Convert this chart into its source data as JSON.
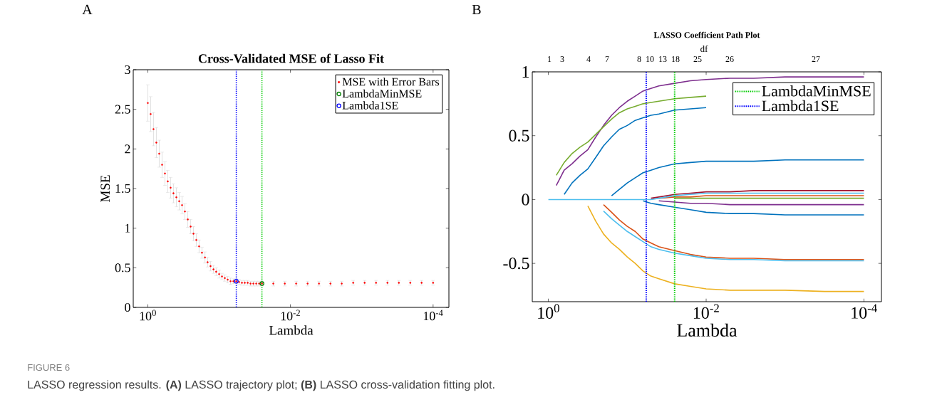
{
  "chart_data": [
    {
      "type": "scatter",
      "title": "Cross-Validated MSE of Lasso Fit",
      "xlabel": "Lambda",
      "ylabel": "MSE",
      "log": "x",
      "xlim": [
        1.6,
        6e-05
      ],
      "ylim": [
        0,
        3
      ],
      "xticks": [
        {
          "value": 1,
          "label": "10$^{0}$"
        },
        {
          "value": 0.01,
          "label": "10$^{-2}$"
        },
        {
          "value": 0.0001,
          "label": "10$^{-4}$"
        }
      ],
      "yticks": [
        0,
        0.5,
        1,
        1.5,
        2,
        2.5,
        3
      ],
      "legend": "top right",
      "marker": "circle",
      "annotations": [
        "A",
        "FIGURE 6",
        "LASSO regression results. **(A)** LASSO trajectory plot; **(B)** LASSO cross-validation fitting plot."
      ],
      "ref_lines": [
        {
          "axis": "x",
          "value": 0.0575,
          "color": "#0000ff",
          "line_style": "dotted"
        },
        {
          "axis": "x",
          "value": 0.0251,
          "color": "#00cc00",
          "line_style": "dotted"
        }
      ],
      "series": [
        {
          "name": "MSE with Error Bars",
          "color": "#ff0000",
          "x": [
            1,
            0.912,
            0.832,
            0.759,
            0.692,
            0.631,
            0.575,
            0.525,
            0.479,
            0.437,
            0.398,
            0.363,
            0.331,
            0.302,
            0.275,
            0.251,
            0.229,
            0.209,
            0.191,
            0.174,
            0.158,
            0.145,
            0.132,
            0.12,
            0.11,
            0.1,
            0.0912,
            0.0832,
            0.0759,
            0.0692,
            0.0631,
            0.0575,
            0.0525,
            0.0479,
            0.0437,
            0.0398,
            0.0363,
            0.0331,
            0.0302,
            0.0275,
            0.0251,
            0.0174,
            0.012,
            0.00832,
            0.00575,
            0.00398,
            0.00275,
            0.00191,
            0.00132,
            0.000912,
            0.000631,
            0.000437,
            0.000302,
            0.000209,
            0.000145,
            0.0001
          ],
          "values": [
            2.58,
            2.44,
            2.25,
            2.08,
            1.94,
            1.8,
            1.69,
            1.59,
            1.51,
            1.44,
            1.39,
            1.34,
            1.29,
            1.21,
            1.11,
            1.02,
            0.93,
            0.85,
            0.77,
            0.69,
            0.63,
            0.57,
            0.52,
            0.48,
            0.45,
            0.42,
            0.39,
            0.37,
            0.35,
            0.33,
            0.33,
            0.33,
            0.32,
            0.31,
            0.31,
            0.31,
            0.3,
            0.3,
            0.3,
            0.3,
            0.3,
            0.3,
            0.3,
            0.3,
            0.3,
            0.3,
            0.3,
            0.3,
            0.31,
            0.31,
            0.31,
            0.31,
            0.31,
            0.31,
            0.31,
            0.31
          ],
          "errors": [
            0.23,
            0.22,
            0.21,
            0.19,
            0.17,
            0.16,
            0.15,
            0.14,
            0.13,
            0.12,
            0.12,
            0.11,
            0.11,
            0.1,
            0.1,
            0.09,
            0.09,
            0.08,
            0.08,
            0.07,
            0.07,
            0.06,
            0.06,
            0.05,
            0.05,
            0.05,
            0.04,
            0.04,
            0.04,
            0.04,
            0.03,
            0.03,
            0.03,
            0.03,
            0.03,
            0.03,
            0.03,
            0.03,
            0.03,
            0.03,
            0.03,
            0.03,
            0.03,
            0.03,
            0.03,
            0.03,
            0.03,
            0.03,
            0.03,
            0.03,
            0.03,
            0.03,
            0.03,
            0.03,
            0.03,
            0.03
          ]
        },
        {
          "name": "LambdaMinMSE",
          "color": "#008000",
          "x": [
            0.0251
          ],
          "values": [
            0.3
          ]
        },
        {
          "name": "Lambda1SE",
          "color": "#0000ff",
          "x": [
            0.0575
          ],
          "values": [
            0.33
          ]
        }
      ]
    },
    {
      "type": "line",
      "title": "LASSO Coefficient Path Plot",
      "xlabel": "Lambda",
      "log": "x",
      "xlim": [
        1.6,
        6e-05
      ],
      "ylim": [
        -0.8,
        1
      ],
      "xticks": [
        {
          "value": 1,
          "label": "10$^{0}$"
        },
        {
          "value": 0.01,
          "label": "10$^{-2}$"
        },
        {
          "value": 0.0001,
          "label": "10$^{-4}$"
        }
      ],
      "yticks": [
        -0.5,
        0,
        0.5,
        1
      ],
      "legend": "top right",
      "annotations": [
        "B",
        "df",
        "1",
        "3",
        "4",
        "7",
        "8",
        "10",
        "13",
        "18",
        "25",
        "26",
        "27"
      ],
      "x": [
        1,
        0.794,
        0.631,
        0.501,
        0.398,
        0.316,
        0.251,
        0.2,
        0.158,
        0.126,
        0.1,
        0.0794,
        0.0631,
        0.0501,
        0.0398,
        0.0251,
        0.0158,
        0.01,
        0.005,
        0.0025,
        0.001,
        0.000316,
        0.0001
      ],
      "series": [
        {
          "color": "#d95319",
          "values": [
            null,
            null,
            null,
            null,
            null,
            null,
            null,
            null,
            null,
            null,
            null,
            null,
            null,
            null,
            0.01,
            0.02,
            0.02,
            0.03,
            0.03,
            0.03,
            0.03,
            0.03,
            0.03
          ]
        },
        {
          "color": "#77ac30",
          "values": [
            null,
            null,
            null,
            null,
            null,
            null,
            null,
            null,
            null,
            null,
            null,
            null,
            null,
            null,
            null,
            0.01,
            0.01,
            0.01,
            0.01,
            0.01,
            0.01,
            0.01,
            0.01
          ]
        },
        {
          "color": "#7e2f8e",
          "values": [
            null,
            null,
            null,
            null,
            null,
            null,
            null,
            null,
            null,
            null,
            null,
            null,
            null,
            null,
            -0.01,
            -0.02,
            -0.03,
            -0.03,
            -0.04,
            -0.04,
            -0.04,
            -0.04,
            -0.04
          ]
        },
        {
          "color": "#7e2f8e",
          "values": [
            null,
            0.11,
            0.23,
            0.28,
            0.34,
            0.39,
            0.49,
            0.58,
            0.66,
            0.72,
            0.77,
            0.81,
            0.85,
            0.87,
            0.89,
            0.91,
            0.93,
            0.94,
            0.95,
            0.95,
            0.96,
            0.96,
            0.96
          ]
        },
        {
          "color": "#77ac30",
          "values": [
            null,
            0.19,
            0.29,
            0.36,
            0.41,
            0.45,
            0.51,
            0.57,
            0.63,
            0.68,
            0.71,
            0.73,
            0.75,
            0.76,
            0.77,
            0.79,
            0.8,
            0.81,
            null,
            null,
            null,
            null,
            null
          ]
        },
        {
          "color": "#0072bd",
          "values": [
            null,
            null,
            0.04,
            0.13,
            0.19,
            0.24,
            0.33,
            0.42,
            0.49,
            0.55,
            0.58,
            0.62,
            0.64,
            0.66,
            0.67,
            0.7,
            0.71,
            0.72,
            null,
            null,
            null,
            null,
            null
          ]
        },
        {
          "color": "#0072bd",
          "values": [
            null,
            null,
            null,
            null,
            null,
            null,
            null,
            null,
            0.03,
            0.08,
            0.13,
            0.17,
            0.21,
            0.23,
            0.25,
            0.28,
            0.29,
            0.3,
            0.3,
            0.3,
            0.31,
            0.31,
            0.31
          ]
        },
        {
          "color": "#a2142f",
          "values": [
            null,
            null,
            null,
            null,
            null,
            null,
            null,
            null,
            null,
            null,
            null,
            null,
            null,
            0.01,
            0.02,
            0.04,
            0.05,
            0.06,
            0.06,
            0.07,
            0.07,
            0.07,
            0.07
          ]
        },
        {
          "color": "#0072bd",
          "values": [
            null,
            null,
            null,
            null,
            null,
            null,
            null,
            null,
            null,
            null,
            null,
            null,
            -0.01,
            -0.03,
            -0.04,
            -0.06,
            -0.08,
            -0.1,
            -0.11,
            -0.11,
            -0.12,
            -0.12,
            -0.12
          ]
        },
        {
          "color": "#d95319",
          "values": [
            null,
            null,
            null,
            null,
            null,
            null,
            null,
            -0.04,
            -0.1,
            -0.16,
            -0.21,
            -0.25,
            -0.31,
            -0.34,
            -0.37,
            -0.4,
            -0.43,
            -0.45,
            -0.46,
            -0.46,
            -0.47,
            -0.47,
            -0.47
          ]
        },
        {
          "color": "#edb120",
          "values": [
            null,
            null,
            null,
            null,
            null,
            -0.05,
            -0.17,
            -0.27,
            -0.34,
            -0.39,
            -0.45,
            -0.5,
            -0.56,
            -0.6,
            -0.62,
            -0.66,
            -0.68,
            -0.7,
            -0.71,
            -0.71,
            -0.71,
            -0.72,
            -0.72
          ]
        },
        {
          "color": "#4dbeee",
          "values": [
            null,
            null,
            null,
            null,
            null,
            null,
            null,
            -0.09,
            -0.15,
            -0.2,
            -0.25,
            -0.29,
            -0.33,
            -0.37,
            -0.39,
            -0.42,
            -0.44,
            -0.46,
            -0.47,
            -0.47,
            -0.48,
            -0.48,
            -0.48
          ]
        },
        {
          "color": "#4dbeee",
          "values": [
            0,
            0,
            0,
            0,
            0,
            0,
            0,
            0,
            0,
            0,
            0,
            0,
            0,
            0,
            0.01,
            0.03,
            0.04,
            0.05,
            0.05,
            0.05,
            0.05,
            0.05,
            0.05
          ]
        },
        {
          "name": "LambdaMinMSE",
          "color": "#00cc00",
          "line_style": "dotted",
          "x": [
            0.0251,
            0.0251
          ],
          "values": [
            -0.8,
            1
          ]
        },
        {
          "name": "Lambda1SE",
          "color": "#0000ff",
          "line_style": "dotted",
          "x": [
            0.0575,
            0.0575
          ],
          "values": [
            -0.8,
            1
          ]
        }
      ]
    }
  ]
}
